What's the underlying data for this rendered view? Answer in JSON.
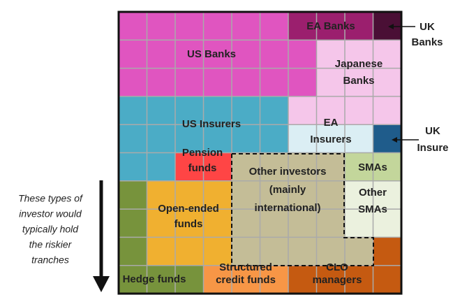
{
  "regions": [
    {
      "label": [
        "EA Banks"
      ]
    },
    {
      "label": [
        "US Banks"
      ]
    },
    {
      "label": [
        "Japanese",
        "Banks"
      ]
    },
    {
      "label": [
        "US Insurers"
      ]
    },
    {
      "label": [
        "EA",
        "Insurers"
      ]
    },
    {
      "label": [
        "Pension",
        "funds"
      ]
    },
    {
      "label": [
        "SMAs"
      ]
    },
    {
      "label": [
        "Other investors",
        "(mainly",
        "international)"
      ]
    },
    {
      "label": [
        "Other",
        "SMAs"
      ]
    },
    {
      "label": [
        "Open-ended",
        "funds"
      ]
    },
    {
      "label": [
        "Hedge funds"
      ]
    },
    {
      "label": [
        "Structured",
        "credit funds"
      ]
    },
    {
      "label": [
        "CLO",
        "managers"
      ]
    }
  ],
  "callouts": [
    {
      "label": [
        "UK",
        "Banks"
      ]
    },
    {
      "label": [
        "UK",
        "Insure"
      ]
    }
  ],
  "note": [
    "These types of",
    "investor would",
    "typically hold",
    "the riskier",
    "tranches"
  ]
}
